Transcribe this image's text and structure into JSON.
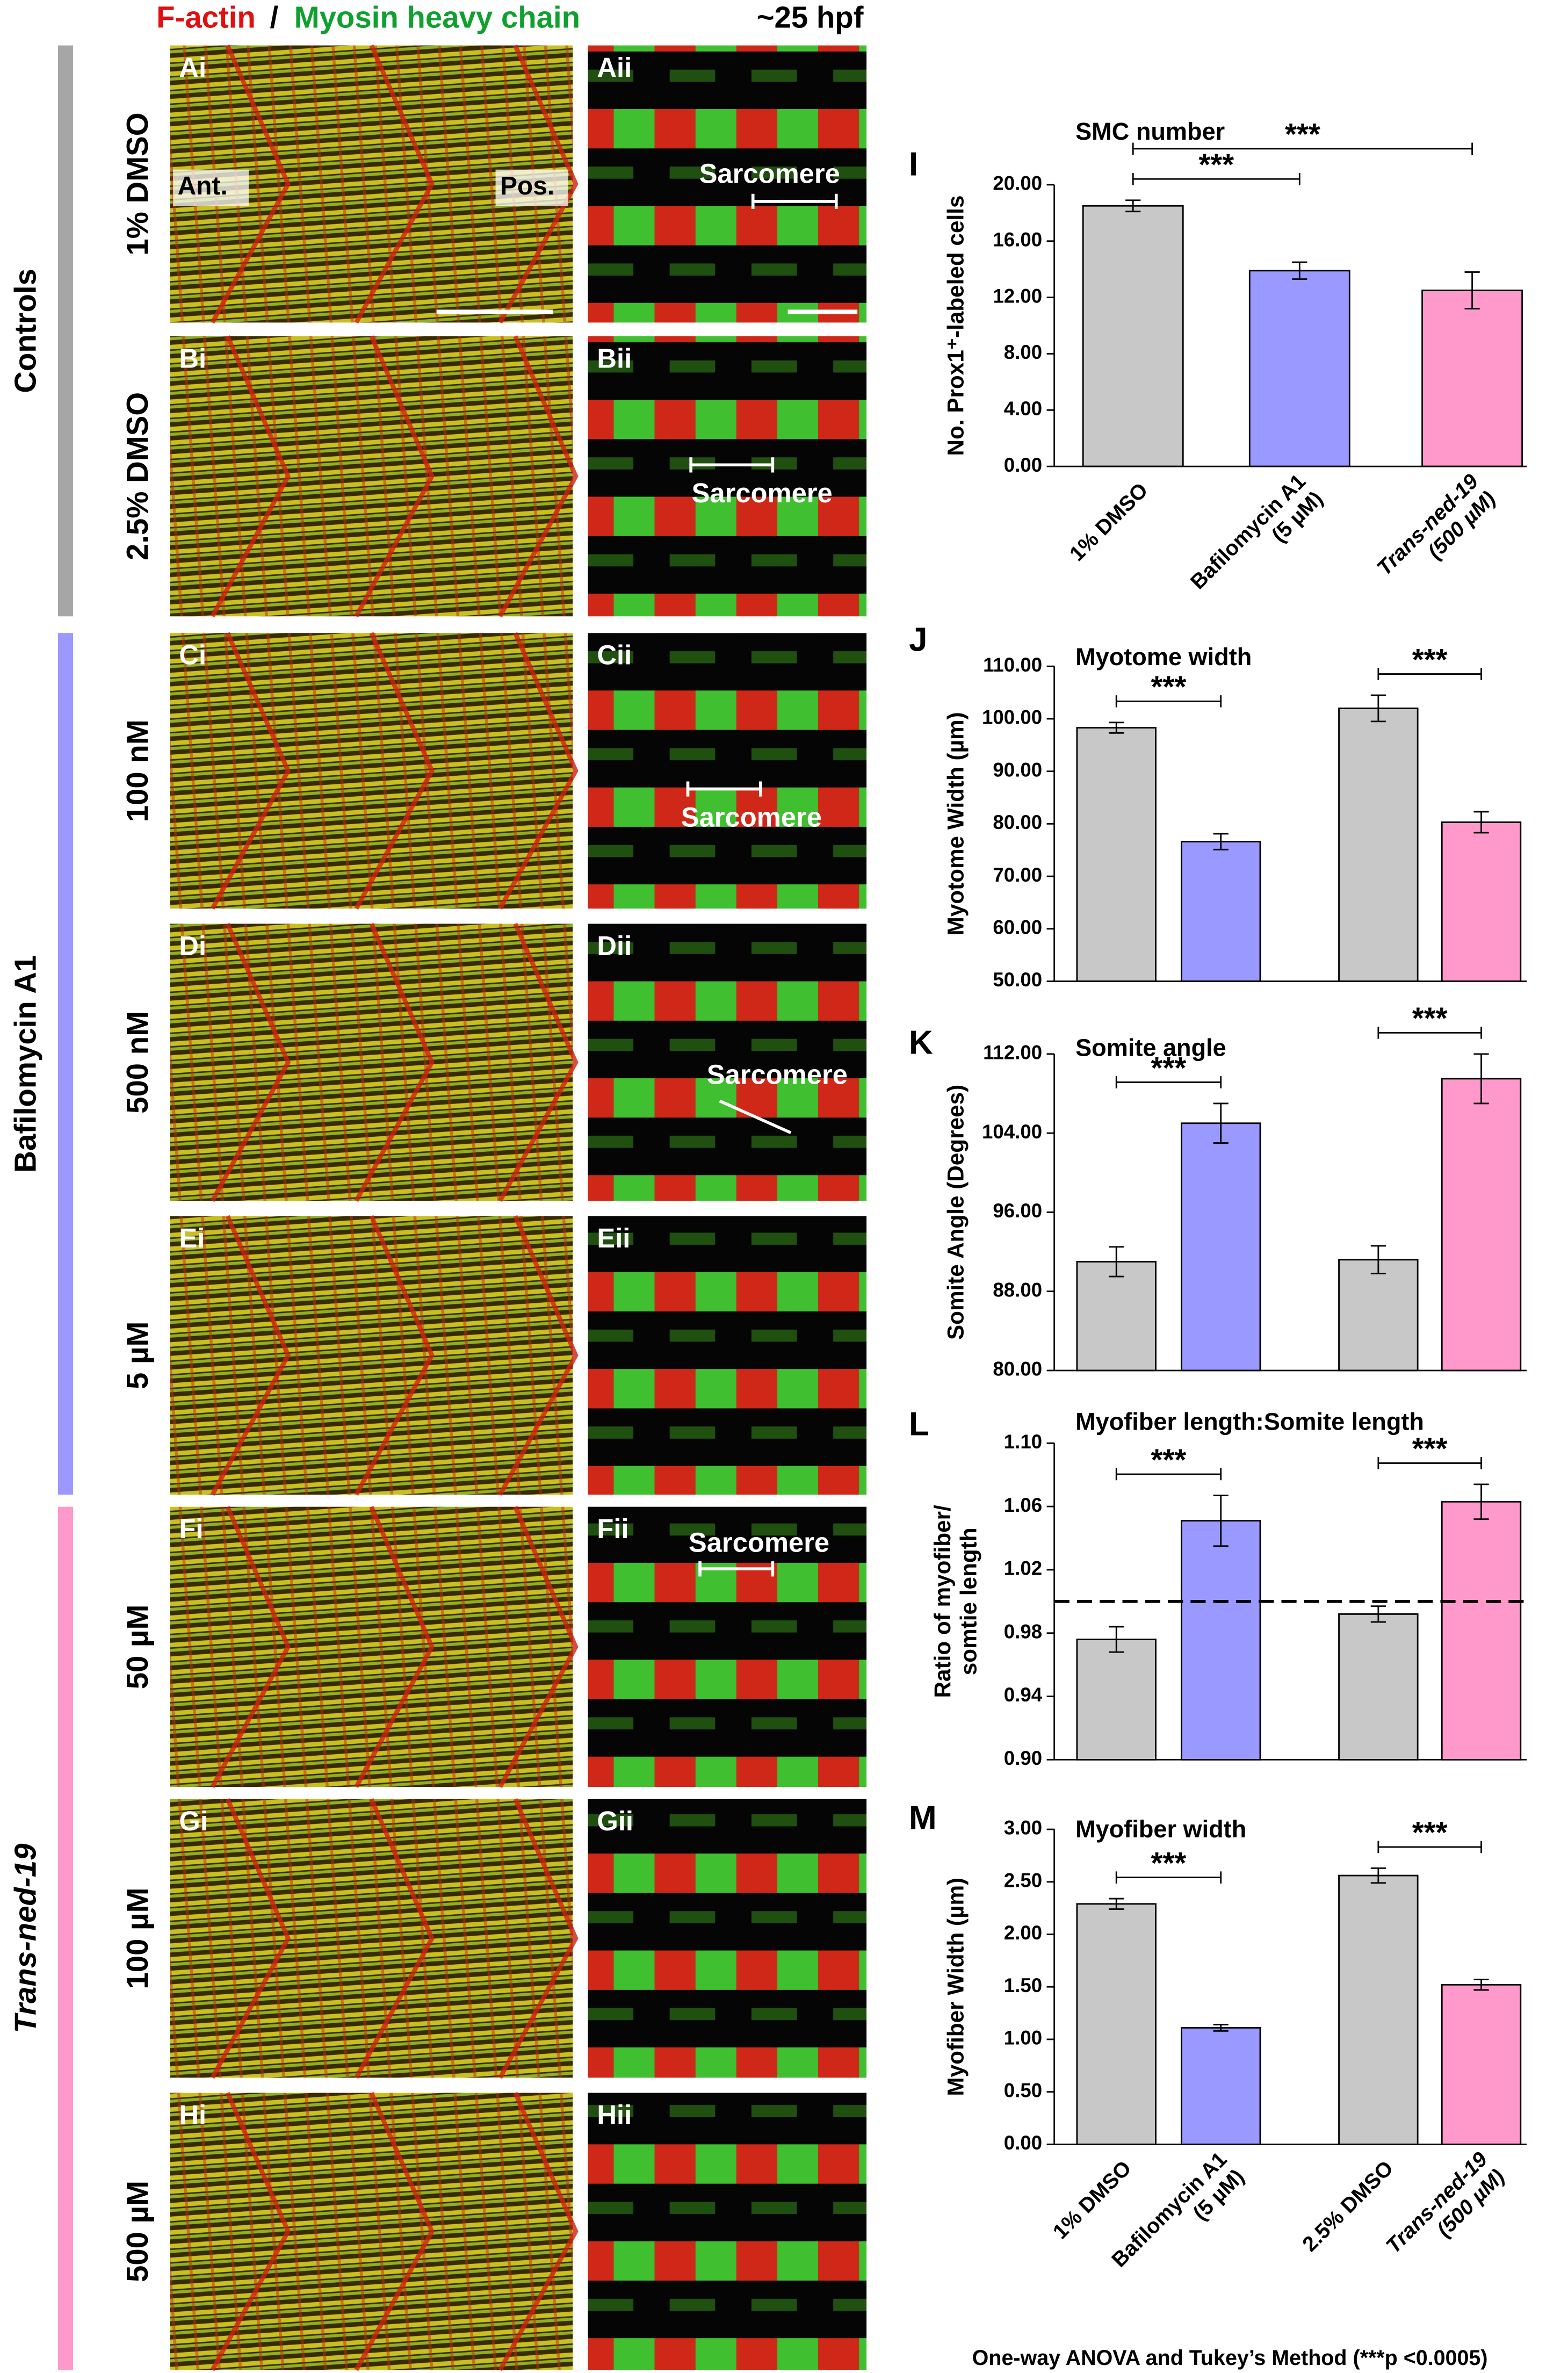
{
  "header": {
    "left": "F-actin",
    "sep": "/",
    "right": "Myosin heavy chain",
    "stage": "~25 hpf"
  },
  "groups": [
    {
      "name": "Controls",
      "color": "#a6a6a6"
    },
    {
      "name": "Bafilomycin A1",
      "color": "#9999ff"
    },
    {
      "name": "Trans-ned-19",
      "color": "#ff99cc"
    }
  ],
  "rows": [
    {
      "label": "1% DMSO",
      "left": "Ai",
      "right": "Aii",
      "ant": "Ant.",
      "pos": "Pos.",
      "sarcomere": "Sarcomere"
    },
    {
      "label": "2.5% DMSO",
      "left": "Bi",
      "right": "Bii",
      "sarcomere": "Sarcomere"
    },
    {
      "label": "100 nM",
      "left": "Ci",
      "right": "Cii",
      "sarcomere": "Sarcomere"
    },
    {
      "label": "500 nM",
      "left": "Di",
      "right": "Dii",
      "sarcomere": "Sarcomere"
    },
    {
      "label": "5 µM",
      "left": "Ei",
      "right": "Eii"
    },
    {
      "label": "50 µM",
      "left": "Fi",
      "right": "Fii",
      "sarcomere": "Sarcomere"
    },
    {
      "label": "100 µM",
      "left": "Gi",
      "right": "Gii"
    },
    {
      "label": "500 µM",
      "left": "Hi",
      "right": "Hii"
    }
  ],
  "chart_data": [
    {
      "type": "bar",
      "panel": "I",
      "title": "SMC number",
      "ylabel": "No. Prox1⁺-labeled cells",
      "categories": [
        "1% DMSO",
        "Bafilomycin A1\n(5 µM)",
        "Trans-ned-19\n(500 µM)"
      ],
      "values": [
        18.5,
        13.9,
        12.5
      ],
      "errors": [
        0.4,
        0.6,
        1.3
      ],
      "colors": [
        "#c8c8c8",
        "#9999ff",
        "#ff99cc"
      ],
      "ylim": [
        0,
        20
      ],
      "yticks": [
        {
          "value": 0,
          "label": "0.00"
        },
        {
          "value": 4,
          "label": "4.00"
        },
        {
          "value": 8,
          "label": "8.00"
        },
        {
          "value": 12,
          "label": "12.00"
        },
        {
          "value": 16,
          "label": "16.00"
        },
        {
          "value": 20,
          "label": "20.00"
        }
      ],
      "significance": [
        {
          "label": "***",
          "pair": [
            0,
            1
          ]
        },
        {
          "label": "***",
          "pair": [
            0,
            2
          ]
        }
      ]
    },
    {
      "type": "bar",
      "panel": "J",
      "title": "Myotome width",
      "ylabel": "Myotome Width (µm)",
      "categories": [
        null,
        null,
        null,
        null
      ],
      "values": [
        98.3,
        76.6,
        102,
        80.3
      ],
      "errors": [
        1,
        1.5,
        2.5,
        2
      ],
      "colors": [
        "#c8c8c8",
        "#9999ff",
        "#c8c8c8",
        "#ff99cc"
      ],
      "ylim": [
        50,
        110
      ],
      "yticks": [
        {
          "value": 50,
          "label": "50.00"
        },
        {
          "value": 60,
          "label": "60.00"
        },
        {
          "value": 70,
          "label": "70.00"
        },
        {
          "value": 80,
          "label": "80.00"
        },
        {
          "value": 90,
          "label": "90.00"
        },
        {
          "value": 100,
          "label": "100.00"
        },
        {
          "value": 110,
          "label": "110.00"
        }
      ],
      "significance": [
        {
          "label": "***",
          "pair": [
            0,
            1
          ]
        },
        {
          "label": "***",
          "pair": [
            2,
            3
          ]
        }
      ]
    },
    {
      "type": "bar",
      "panel": "K",
      "title": "Somite angle",
      "ylabel": "Somite Angle (Degrees)",
      "categories": [
        null,
        null,
        null,
        null
      ],
      "values": [
        91,
        105,
        91.2,
        109.5
      ],
      "errors": [
        1.5,
        2,
        1.4,
        2.5
      ],
      "colors": [
        "#c8c8c8",
        "#9999ff",
        "#c8c8c8",
        "#ff99cc"
      ],
      "ylim": [
        80,
        112
      ],
      "yticks": [
        {
          "value": 80,
          "label": "80.00"
        },
        {
          "value": 88,
          "label": "88.00"
        },
        {
          "value": 96,
          "label": "96.00"
        },
        {
          "value": 104,
          "label": "104.00"
        },
        {
          "value": 112,
          "label": "112.00"
        }
      ],
      "significance": [
        {
          "label": "***",
          "pair": [
            0,
            1
          ]
        },
        {
          "label": "***",
          "pair": [
            2,
            3
          ]
        }
      ]
    },
    {
      "type": "bar",
      "panel": "L",
      "title": "Myofiber length:Somite length",
      "ylabel": "Ratio of myofiber/\nsomtie length",
      "categories": [
        null,
        null,
        null,
        null
      ],
      "values": [
        0.976,
        1.051,
        0.992,
        1.063
      ],
      "errors": [
        0.008,
        0.016,
        0.005,
        0.011
      ],
      "colors": [
        "#c8c8c8",
        "#9999ff",
        "#c8c8c8",
        "#ff99cc"
      ],
      "ylim": [
        0.9,
        1.1
      ],
      "yticks": [
        {
          "value": 0.9,
          "label": "0.90"
        },
        {
          "value": 0.94,
          "label": "0.94"
        },
        {
          "value": 0.98,
          "label": "0.98"
        },
        {
          "value": 1.02,
          "label": "1.02"
        },
        {
          "value": 1.06,
          "label": "1.06"
        },
        {
          "value": 1.1,
          "label": "1.10"
        }
      ],
      "reference_line": 1,
      "significance": [
        {
          "label": "***",
          "pair": [
            0,
            1
          ]
        },
        {
          "label": "***",
          "pair": [
            2,
            3
          ]
        }
      ]
    },
    {
      "type": "bar",
      "panel": "M",
      "title": "Myofiber width",
      "ylabel": "Myofiber Width (µm)",
      "categories": [
        "1% DMSO",
        "Bafilomycin A1\n(5 µM)",
        "2.5% DMSO",
        "Trans-ned-19\n(500 µM)"
      ],
      "values": [
        2.29,
        1.11,
        2.56,
        1.52
      ],
      "errors": [
        0.05,
        0.03,
        0.07,
        0.05
      ],
      "colors": [
        "#c8c8c8",
        "#9999ff",
        "#c8c8c8",
        "#ff99cc"
      ],
      "ylim": [
        0,
        3
      ],
      "yticks": [
        {
          "value": 0,
          "label": "0.00"
        },
        {
          "value": 0.5,
          "label": "0.50"
        },
        {
          "value": 1,
          "label": "1.00"
        },
        {
          "value": 1.5,
          "label": "1.50"
        },
        {
          "value": 2,
          "label": "2.00"
        },
        {
          "value": 2.5,
          "label": "2.50"
        },
        {
          "value": 3,
          "label": "3.00"
        }
      ],
      "significance": [
        {
          "label": "***",
          "pair": [
            0,
            1
          ]
        },
        {
          "label": "***",
          "pair": [
            2,
            3
          ]
        }
      ]
    }
  ],
  "footer": "One-way ANOVA and Tukey’s Method (***p <0.0005)"
}
